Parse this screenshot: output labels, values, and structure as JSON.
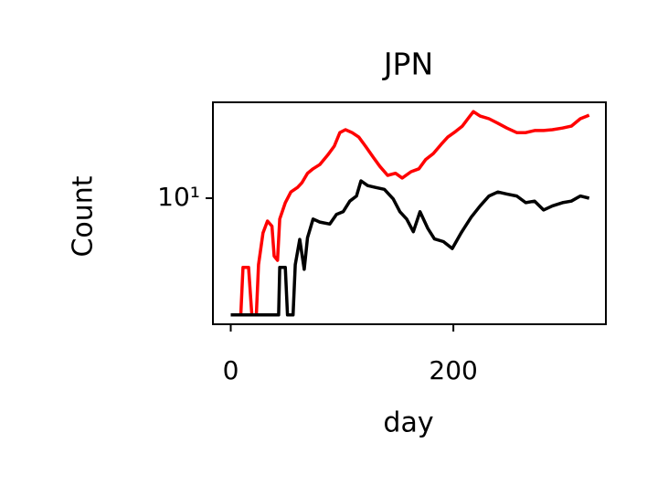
{
  "chart_data": {
    "type": "line",
    "title": "JPN",
    "x_label": "day",
    "y_label": "Count",
    "log_y": true,
    "grid": false,
    "xlim": [
      -16,
      337
    ],
    "ylim": [
      1.76,
      37.5
    ],
    "xticks": [
      0,
      200
    ],
    "yticks": [
      {
        "value": 10,
        "label": "10¹"
      }
    ],
    "series": [
      {
        "color": "#ff0000",
        "x": [
          0,
          9,
          11,
          16,
          19,
          23,
          25,
          29,
          33,
          37,
          39,
          42,
          44,
          49,
          54,
          60,
          64,
          69,
          74,
          80,
          87,
          93,
          98,
          103,
          109,
          115,
          121,
          128,
          134,
          141,
          148,
          154,
          162,
          169,
          175,
          182,
          189,
          195,
          202,
          208,
          213,
          218,
          224,
          232,
          240,
          248,
          257,
          265,
          273,
          281,
          289,
          298,
          306,
          314,
          322
        ],
        "values": [
          2.0,
          2.0,
          3.85,
          3.85,
          2.0,
          2.0,
          4.0,
          6.2,
          7.3,
          6.8,
          4.5,
          4.25,
          7.5,
          9.4,
          10.9,
          11.6,
          12.4,
          14.1,
          15.0,
          15.9,
          18.1,
          20.5,
          24.7,
          25.7,
          24.7,
          23.2,
          20.5,
          17.6,
          15.5,
          13.7,
          14.1,
          13.2,
          14.4,
          15.0,
          17.0,
          18.5,
          21.0,
          23.2,
          25.1,
          27.0,
          29.9,
          33.0,
          31.0,
          29.9,
          28.1,
          26.3,
          24.7,
          24.7,
          25.4,
          25.4,
          25.7,
          26.3,
          27.0,
          29.9,
          31.4
        ]
      },
      {
        "color": "#000000",
        "x": [
          0,
          43,
          44,
          49,
          51,
          56,
          58,
          62,
          66,
          69,
          74,
          80,
          89,
          95,
          101,
          107,
          113,
          117,
          123,
          130,
          138,
          146,
          152,
          158,
          164,
          170,
          177,
          183,
          191,
          199,
          207,
          216,
          224,
          232,
          240,
          248,
          257,
          265,
          273,
          281,
          289,
          298,
          306,
          314,
          322
        ],
        "values": [
          2.0,
          2.0,
          3.85,
          3.85,
          2.0,
          2.0,
          4.0,
          5.67,
          3.75,
          5.8,
          7.5,
          7.2,
          7.0,
          8.0,
          8.3,
          9.6,
          10.3,
          12.7,
          11.9,
          11.6,
          11.3,
          9.9,
          8.3,
          7.5,
          6.3,
          8.3,
          6.6,
          5.7,
          5.5,
          5.0,
          6.2,
          7.7,
          9.0,
          10.3,
          10.9,
          10.6,
          10.3,
          9.4,
          9.6,
          8.5,
          9.0,
          9.4,
          9.6,
          10.3,
          10.0
        ]
      }
    ]
  }
}
